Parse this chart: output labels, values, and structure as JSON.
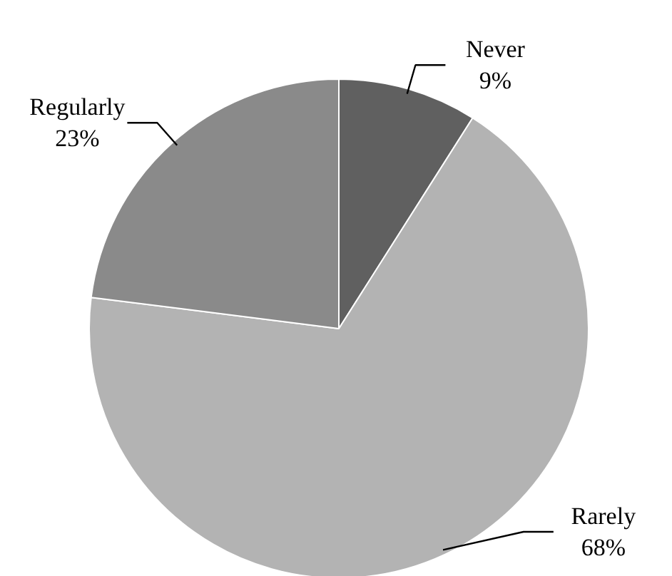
{
  "chart_data": {
    "type": "pie",
    "categories": [
      "Never",
      "Rarely",
      "Regularly"
    ],
    "values": [
      9,
      68,
      23
    ],
    "colors": [
      "#606060",
      "#b3b3b3",
      "#8a8a8a"
    ],
    "value_labels": [
      "9%",
      "68%",
      "23%"
    ]
  }
}
